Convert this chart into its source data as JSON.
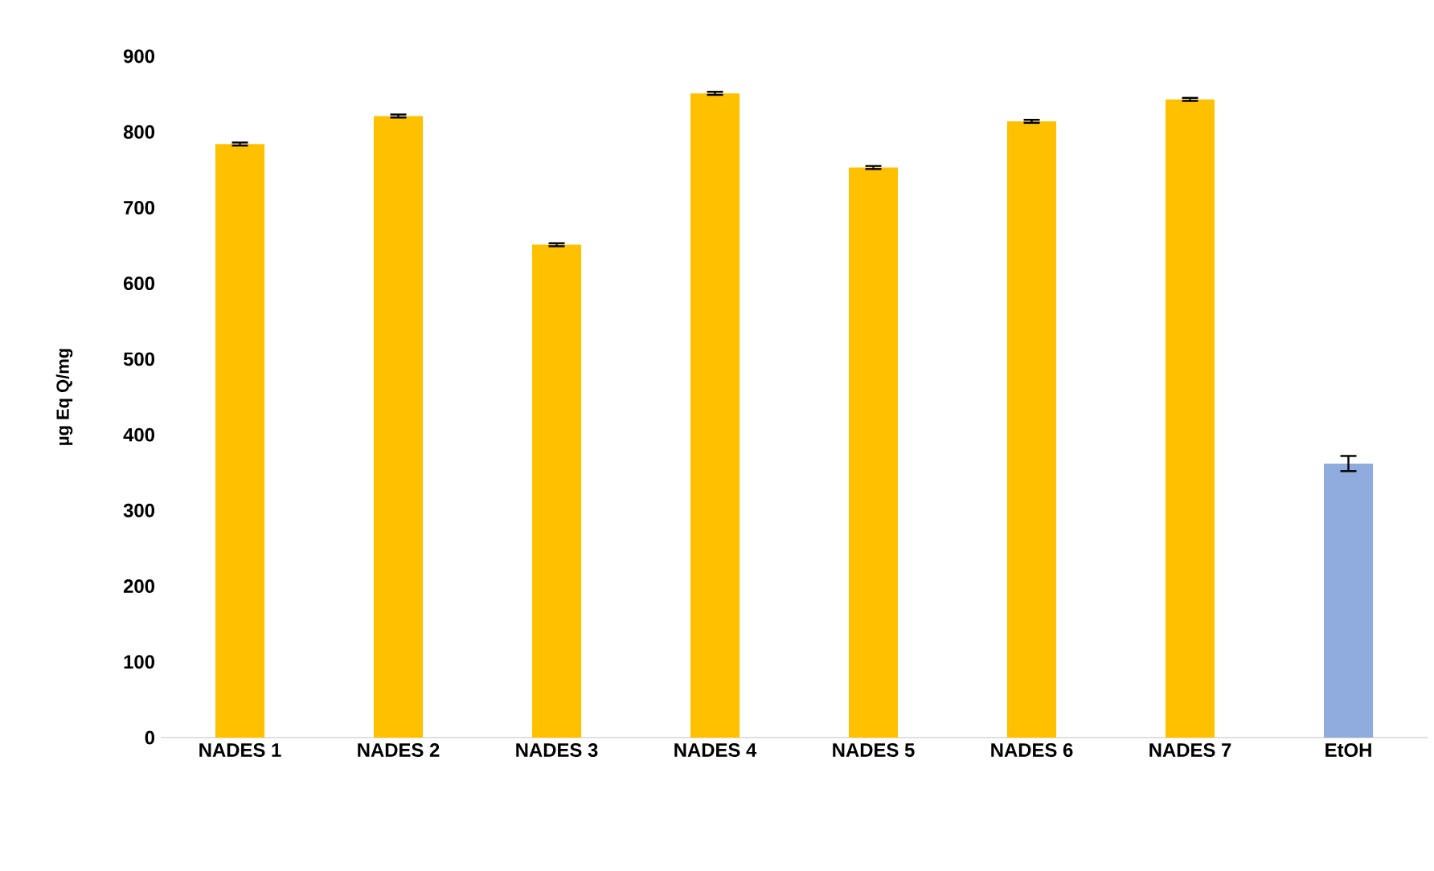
{
  "chart_data": {
    "type": "bar",
    "ylabel": "µg Eq Q/mg",
    "categories": [
      "NADES 1",
      "NADES 2",
      "NADES 3",
      "NADES 4",
      "NADES 5",
      "NADES 6",
      "NADES 7",
      "EtOH"
    ],
    "values": [
      784,
      821,
      651,
      851,
      753,
      814,
      843,
      362
    ],
    "errors": [
      2,
      2,
      2,
      2,
      2,
      2,
      2,
      10
    ],
    "colors": [
      "#ffc000",
      "#ffc000",
      "#ffc000",
      "#ffc000",
      "#ffc000",
      "#ffc000",
      "#ffc000",
      "#8faadc"
    ],
    "ylim": [
      0,
      900
    ],
    "yticks": [
      0,
      100,
      200,
      300,
      400,
      500,
      600,
      700,
      800,
      900
    ]
  }
}
